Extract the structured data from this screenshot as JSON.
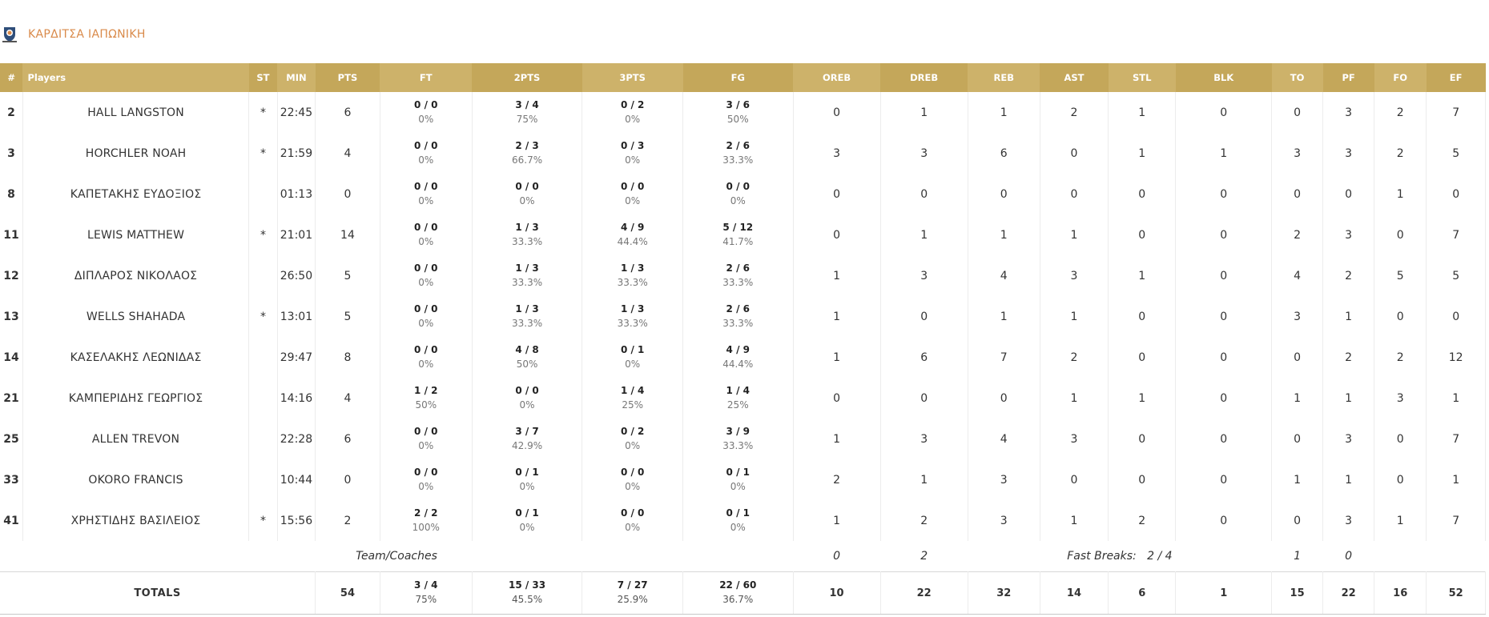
{
  "team": {
    "name": "ΚΑΡΔΙΤΣΑ ΙΑΠΩΝΙΚΗ",
    "logo_icon": "team-crest-icon",
    "accent_color": "#d98a4a"
  },
  "header_color": "#c4a75a",
  "columns": [
    "#",
    "Players",
    "ST",
    "MIN",
    "PTS",
    "FT",
    "2PTS",
    "3PTS",
    "FG",
    "OREB",
    "DREB",
    "REB",
    "AST",
    "STL",
    "BLK",
    "TO",
    "PF",
    "FO",
    "EF"
  ],
  "players": [
    {
      "num": "2",
      "name": "HALL LANGSTON",
      "st": "*",
      "min": "22:45",
      "pts": "6",
      "ft": "0 / 0",
      "ft_pct": "0%",
      "p2": "3 / 4",
      "p2_pct": "75%",
      "p3": "0 / 2",
      "p3_pct": "0%",
      "fg": "3 / 6",
      "fg_pct": "50%",
      "oreb": "0",
      "dreb": "1",
      "reb": "1",
      "ast": "2",
      "stl": "1",
      "blk": "0",
      "to": "0",
      "pf": "3",
      "fo": "2",
      "ef": "7"
    },
    {
      "num": "3",
      "name": "HORCHLER NOAH",
      "st": "*",
      "min": "21:59",
      "pts": "4",
      "ft": "0 / 0",
      "ft_pct": "0%",
      "p2": "2 / 3",
      "p2_pct": "66.7%",
      "p3": "0 / 3",
      "p3_pct": "0%",
      "fg": "2 / 6",
      "fg_pct": "33.3%",
      "oreb": "3",
      "dreb": "3",
      "reb": "6",
      "ast": "0",
      "stl": "1",
      "blk": "1",
      "to": "3",
      "pf": "3",
      "fo": "2",
      "ef": "5"
    },
    {
      "num": "8",
      "name": "ΚΑΠΕΤΑΚΗΣ ΕΥΔΟΞΙΟΣ",
      "st": "",
      "min": "01:13",
      "pts": "0",
      "ft": "0 / 0",
      "ft_pct": "0%",
      "p2": "0 / 0",
      "p2_pct": "0%",
      "p3": "0 / 0",
      "p3_pct": "0%",
      "fg": "0 / 0",
      "fg_pct": "0%",
      "oreb": "0",
      "dreb": "0",
      "reb": "0",
      "ast": "0",
      "stl": "0",
      "blk": "0",
      "to": "0",
      "pf": "0",
      "fo": "1",
      "ef": "0"
    },
    {
      "num": "11",
      "name": "LEWIS MATTHEW",
      "st": "*",
      "min": "21:01",
      "pts": "14",
      "ft": "0 / 0",
      "ft_pct": "0%",
      "p2": "1 / 3",
      "p2_pct": "33.3%",
      "p3": "4 / 9",
      "p3_pct": "44.4%",
      "fg": "5 / 12",
      "fg_pct": "41.7%",
      "oreb": "0",
      "dreb": "1",
      "reb": "1",
      "ast": "1",
      "stl": "0",
      "blk": "0",
      "to": "2",
      "pf": "3",
      "fo": "0",
      "ef": "7"
    },
    {
      "num": "12",
      "name": "ΔΙΠΛΑΡΟΣ ΝΙΚΟΛΑΟΣ",
      "st": "",
      "min": "26:50",
      "pts": "5",
      "ft": "0 / 0",
      "ft_pct": "0%",
      "p2": "1 / 3",
      "p2_pct": "33.3%",
      "p3": "1 / 3",
      "p3_pct": "33.3%",
      "fg": "2 / 6",
      "fg_pct": "33.3%",
      "oreb": "1",
      "dreb": "3",
      "reb": "4",
      "ast": "3",
      "stl": "1",
      "blk": "0",
      "to": "4",
      "pf": "2",
      "fo": "5",
      "ef": "5"
    },
    {
      "num": "13",
      "name": "WELLS SHAHADA",
      "st": "*",
      "min": "13:01",
      "pts": "5",
      "ft": "0 / 0",
      "ft_pct": "0%",
      "p2": "1 / 3",
      "p2_pct": "33.3%",
      "p3": "1 / 3",
      "p3_pct": "33.3%",
      "fg": "2 / 6",
      "fg_pct": "33.3%",
      "oreb": "1",
      "dreb": "0",
      "reb": "1",
      "ast": "1",
      "stl": "0",
      "blk": "0",
      "to": "3",
      "pf": "1",
      "fo": "0",
      "ef": "0"
    },
    {
      "num": "14",
      "name": "ΚΑΣΕΛΑΚΗΣ ΛΕΩΝΙΔΑΣ",
      "st": "",
      "min": "29:47",
      "pts": "8",
      "ft": "0 / 0",
      "ft_pct": "0%",
      "p2": "4 / 8",
      "p2_pct": "50%",
      "p3": "0 / 1",
      "p3_pct": "0%",
      "fg": "4 / 9",
      "fg_pct": "44.4%",
      "oreb": "1",
      "dreb": "6",
      "reb": "7",
      "ast": "2",
      "stl": "0",
      "blk": "0",
      "to": "0",
      "pf": "2",
      "fo": "2",
      "ef": "12"
    },
    {
      "num": "21",
      "name": "ΚΑΜΠΕΡΙΔΗΣ ΓΕΩΡΓΙΟΣ",
      "st": "",
      "min": "14:16",
      "pts": "4",
      "ft": "1 / 2",
      "ft_pct": "50%",
      "p2": "0 / 0",
      "p2_pct": "0%",
      "p3": "1 / 4",
      "p3_pct": "25%",
      "fg": "1 / 4",
      "fg_pct": "25%",
      "oreb": "0",
      "dreb": "0",
      "reb": "0",
      "ast": "1",
      "stl": "1",
      "blk": "0",
      "to": "1",
      "pf": "1",
      "fo": "3",
      "ef": "1"
    },
    {
      "num": "25",
      "name": "ALLEN TREVON",
      "st": "",
      "min": "22:28",
      "pts": "6",
      "ft": "0 / 0",
      "ft_pct": "0%",
      "p2": "3 / 7",
      "p2_pct": "42.9%",
      "p3": "0 / 2",
      "p3_pct": "0%",
      "fg": "3 / 9",
      "fg_pct": "33.3%",
      "oreb": "1",
      "dreb": "3",
      "reb": "4",
      "ast": "3",
      "stl": "0",
      "blk": "0",
      "to": "0",
      "pf": "3",
      "fo": "0",
      "ef": "7"
    },
    {
      "num": "33",
      "name": "OKORO FRANCIS",
      "st": "",
      "min": "10:44",
      "pts": "0",
      "ft": "0 / 0",
      "ft_pct": "0%",
      "p2": "0 / 1",
      "p2_pct": "0%",
      "p3": "0 / 0",
      "p3_pct": "0%",
      "fg": "0 / 1",
      "fg_pct": "0%",
      "oreb": "2",
      "dreb": "1",
      "reb": "3",
      "ast": "0",
      "stl": "0",
      "blk": "0",
      "to": "1",
      "pf": "1",
      "fo": "0",
      "ef": "1"
    },
    {
      "num": "41",
      "name": "ΧΡΗΣΤΙΔΗΣ ΒΑΣΙΛΕΙΟΣ",
      "st": "*",
      "min": "15:56",
      "pts": "2",
      "ft": "2 / 2",
      "ft_pct": "100%",
      "p2": "0 / 1",
      "p2_pct": "0%",
      "p3": "0 / 0",
      "p3_pct": "0%",
      "fg": "0 / 1",
      "fg_pct": "0%",
      "oreb": "1",
      "dreb": "2",
      "reb": "3",
      "ast": "1",
      "stl": "2",
      "blk": "0",
      "to": "0",
      "pf": "3",
      "fo": "1",
      "ef": "7"
    }
  ],
  "team_row": {
    "label": "Team/Coaches",
    "oreb": "0",
    "dreb": "2",
    "fast_breaks_label": "Fast Breaks:",
    "fast_breaks_value": "2 / 4",
    "to": "1",
    "pf": "0"
  },
  "totals": {
    "label": "TOTALS",
    "pts": "54",
    "ft": "3 / 4",
    "ft_pct": "75%",
    "p2": "15 / 33",
    "p2_pct": "45.5%",
    "p3": "7 / 27",
    "p3_pct": "25.9%",
    "fg": "22 / 60",
    "fg_pct": "36.7%",
    "oreb": "10",
    "dreb": "22",
    "reb": "32",
    "ast": "14",
    "stl": "6",
    "blk": "1",
    "to": "15",
    "pf": "22",
    "fo": "16",
    "ef": "52"
  }
}
